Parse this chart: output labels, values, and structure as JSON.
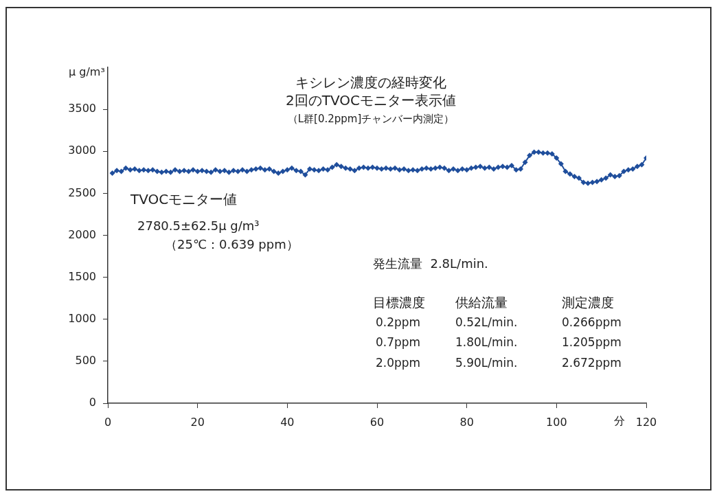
{
  "chart_data": {
    "type": "line",
    "title": "キシレン濃度の経時変化",
    "subtitle": "2回のTVOCモニター表示値",
    "xlabel": "分",
    "ylabel": "μ g/m³",
    "annotations": [
      "（L群[0.2ppm]チャンバー内測定）",
      "TVOCモニター値",
      "2780.5±62.5μ g/m³",
      "（25℃：0.639 ppm）",
      "発生流量  2.8L/min.",
      "目標濃度",
      "供給流量",
      "測定濃度",
      "0.2ppm",
      "0.52L/min.",
      "0.266ppm",
      "0.7ppm",
      "1.80L/min.",
      "1.205ppm",
      "2.0ppm",
      "5.90L/min.",
      "2.672ppm"
    ],
    "x": [
      1,
      2,
      3,
      4,
      5,
      6,
      7,
      8,
      9,
      10,
      11,
      12,
      13,
      14,
      15,
      16,
      17,
      18,
      19,
      20,
      21,
      22,
      23,
      24,
      25,
      26,
      27,
      28,
      29,
      30,
      31,
      32,
      33,
      34,
      35,
      36,
      37,
      38,
      39,
      40,
      41,
      42,
      43,
      44,
      45,
      46,
      47,
      48,
      49,
      50,
      51,
      52,
      53,
      54,
      55,
      56,
      57,
      58,
      59,
      60,
      61,
      62,
      63,
      64,
      65,
      66,
      67,
      68,
      69,
      70,
      71,
      72,
      73,
      74,
      75,
      76,
      77,
      78,
      79,
      80,
      81,
      82,
      83,
      84,
      85,
      86,
      87,
      88,
      89,
      90,
      91,
      92,
      93,
      94,
      95,
      96,
      97,
      98,
      99,
      100,
      101,
      102,
      103,
      104,
      105,
      106,
      107,
      108,
      109,
      110,
      111,
      112,
      113,
      114,
      115,
      116,
      117,
      118,
      119,
      120
    ],
    "series": [
      {
        "color": "#1f4e9c",
        "values": [
          2740,
          2770,
          2760,
          2800,
          2780,
          2790,
          2770,
          2780,
          2770,
          2780,
          2760,
          2750,
          2760,
          2750,
          2780,
          2760,
          2770,
          2760,
          2780,
          2760,
          2770,
          2760,
          2750,
          2780,
          2760,
          2770,
          2750,
          2770,
          2760,
          2780,
          2760,
          2780,
          2790,
          2800,
          2780,
          2790,
          2760,
          2740,
          2760,
          2780,
          2800,
          2770,
          2760,
          2720,
          2790,
          2780,
          2770,
          2790,
          2780,
          2810,
          2840,
          2820,
          2800,
          2790,
          2770,
          2800,
          2810,
          2800,
          2810,
          2800,
          2790,
          2800,
          2790,
          2800,
          2780,
          2790,
          2770,
          2780,
          2770,
          2790,
          2800,
          2790,
          2800,
          2810,
          2800,
          2770,
          2790,
          2770,
          2790,
          2780,
          2800,
          2810,
          2820,
          2800,
          2810,
          2790,
          2810,
          2820,
          2810,
          2830,
          2780,
          2790,
          2870,
          2950,
          2990,
          2990,
          2980,
          2980,
          2970,
          2920,
          2850,
          2760,
          2730,
          2700,
          2680,
          2630,
          2620,
          2630,
          2640,
          2660,
          2680,
          2720,
          2700,
          2710,
          2760,
          2780,
          2790,
          2820,
          2840,
          2920
        ]
      }
    ],
    "xlim": [
      0,
      120
    ],
    "xticks": [
      0,
      20,
      40,
      60,
      80,
      100,
      120
    ],
    "ylim": [
      0,
      4000
    ],
    "yticks": [
      0,
      500,
      1000,
      1500,
      2000,
      2500,
      3000,
      3500
    ],
    "grid": false,
    "legend": false,
    "marker": "diamond",
    "line_style": "solid"
  }
}
